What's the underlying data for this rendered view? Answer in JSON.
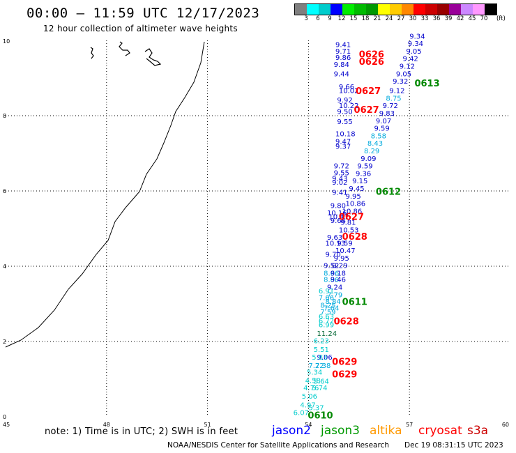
{
  "header": {
    "title": "00:00 – 11:59 UTC 12/17/2023",
    "subtitle": "12 hour collection of altimeter wave heights"
  },
  "legend": {
    "labels": [
      "3",
      "6",
      "9",
      "12",
      "15",
      "18",
      "21",
      "24",
      "27",
      "30",
      "33",
      "36",
      "39",
      "42",
      "45",
      "70"
    ],
    "unit": "(ft)",
    "colors": [
      "#7f7f7f",
      "#00ffff",
      "#00cccc",
      "#0000ff",
      "#00ee00",
      "#00bb00",
      "#009900",
      "#ffff00",
      "#ffcc00",
      "#ff8800",
      "#ff0000",
      "#cc0000",
      "#990000",
      "#990099",
      "#cc88ff",
      "#ff99ff",
      "#000000"
    ]
  },
  "axes": {
    "x_ticks": [
      "45",
      "48",
      "51",
      "54",
      "57",
      "60"
    ],
    "y_ticks": [
      "0",
      "2",
      "4",
      "6",
      "8",
      "10"
    ]
  },
  "passes": [
    {
      "label": "0626",
      "color": "#ff0000",
      "lon": 55.5,
      "lat": 9.55
    },
    {
      "label": "0626",
      "color": "#ff0000",
      "lon": 55.5,
      "lat": 9.35
    },
    {
      "label": "0613",
      "color": "#008800",
      "lon": 57.15,
      "lat": 8.78
    },
    {
      "label": "0627",
      "color": "#ff0000",
      "lon": 55.4,
      "lat": 8.57
    },
    {
      "label": "0627",
      "color": "#ff0000",
      "lon": 55.35,
      "lat": 8.07
    },
    {
      "label": "0612",
      "color": "#008800",
      "lon": 56.0,
      "lat": 5.9
    },
    {
      "label": "0627",
      "color": "#ff0000",
      "lon": 54.9,
      "lat": 5.23
    },
    {
      "label": "0628",
      "color": "#ff0000",
      "lon": 55.0,
      "lat": 4.7
    },
    {
      "label": "0611",
      "color": "#008800",
      "lon": 55.0,
      "lat": 2.97
    },
    {
      "label": "0628",
      "color": "#ff0000",
      "lon": 54.75,
      "lat": 2.45
    },
    {
      "label": "0629",
      "color": "#ff0000",
      "lon": 54.7,
      "lat": 1.38
    },
    {
      "label": "0629",
      "color": "#ff0000",
      "lon": 54.7,
      "lat": 1.05
    },
    {
      "label": "0610",
      "color": "#008800",
      "lon": 53.98,
      "lat": -0.05
    }
  ],
  "observations": [
    {
      "v": "9.34",
      "c": "#0000cc",
      "lon": 57.0,
      "lat": 10.05
    },
    {
      "v": "9.34",
      "c": "#0000cc",
      "lon": 56.95,
      "lat": 9.85
    },
    {
      "v": "9.41",
      "c": "#0000cc",
      "lon": 54.8,
      "lat": 9.82
    },
    {
      "v": "9.05",
      "c": "#0000cc",
      "lon": 56.9,
      "lat": 9.65
    },
    {
      "v": "9.71",
      "c": "#0000cc",
      "lon": 54.8,
      "lat": 9.65
    },
    {
      "v": "9.86",
      "c": "#0000cc",
      "lon": 54.8,
      "lat": 9.48
    },
    {
      "v": "9.42",
      "c": "#0000cc",
      "lon": 56.8,
      "lat": 9.45
    },
    {
      "v": "9.84",
      "c": "#0000cc",
      "lon": 54.75,
      "lat": 9.3
    },
    {
      "v": "9.12",
      "c": "#0000cc",
      "lon": 56.7,
      "lat": 9.25
    },
    {
      "v": "9.44",
      "c": "#0000cc",
      "lon": 54.75,
      "lat": 9.05
    },
    {
      "v": "9.05",
      "c": "#0000cc",
      "lon": 56.6,
      "lat": 9.05
    },
    {
      "v": "9.32",
      "c": "#0000cc",
      "lon": 56.5,
      "lat": 8.85
    },
    {
      "v": "9.66",
      "c": "#0000cc",
      "lon": 54.9,
      "lat": 8.7
    },
    {
      "v": "10.02",
      "c": "#0000cc",
      "lon": 54.9,
      "lat": 8.6
    },
    {
      "v": "9.12",
      "c": "#0000cc",
      "lon": 56.4,
      "lat": 8.6
    },
    {
      "v": "8.75",
      "c": "#00aadd",
      "lon": 56.3,
      "lat": 8.4
    },
    {
      "v": "9.92",
      "c": "#0000cc",
      "lon": 54.85,
      "lat": 8.35
    },
    {
      "v": "10.22",
      "c": "#0000cc",
      "lon": 54.9,
      "lat": 8.2
    },
    {
      "v": "9.72",
      "c": "#0000cc",
      "lon": 56.2,
      "lat": 8.2
    },
    {
      "v": "9.50",
      "c": "#0000cc",
      "lon": 54.85,
      "lat": 8.05
    },
    {
      "v": "9.83",
      "c": "#0000cc",
      "lon": 56.1,
      "lat": 8.0
    },
    {
      "v": "9.07",
      "c": "#0000cc",
      "lon": 56.0,
      "lat": 7.8
    },
    {
      "v": "9.55",
      "c": "#0000cc",
      "lon": 54.85,
      "lat": 7.78
    },
    {
      "v": "9.59",
      "c": "#0000cc",
      "lon": 55.95,
      "lat": 7.6
    },
    {
      "v": "10.18",
      "c": "#0000cc",
      "lon": 54.8,
      "lat": 7.45
    },
    {
      "v": "8.58",
      "c": "#00aadd",
      "lon": 55.85,
      "lat": 7.4
    },
    {
      "v": "9.47",
      "c": "#0000cc",
      "lon": 54.8,
      "lat": 7.25
    },
    {
      "v": "8.43",
      "c": "#00aadd",
      "lon": 55.75,
      "lat": 7.2
    },
    {
      "v": "9.37",
      "c": "#0000cc",
      "lon": 54.8,
      "lat": 7.12
    },
    {
      "v": "8.29",
      "c": "#00aadd",
      "lon": 55.65,
      "lat": 7.0
    },
    {
      "v": "9.09",
      "c": "#0000cc",
      "lon": 55.55,
      "lat": 6.8
    },
    {
      "v": "9.72",
      "c": "#0000cc",
      "lon": 54.75,
      "lat": 6.6
    },
    {
      "v": "9.59",
      "c": "#0000cc",
      "lon": 55.45,
      "lat": 6.6
    },
    {
      "v": "9.55",
      "c": "#0000cc",
      "lon": 54.75,
      "lat": 6.42
    },
    {
      "v": "9.36",
      "c": "#0000cc",
      "lon": 55.4,
      "lat": 6.4
    },
    {
      "v": "9.43",
      "c": "#0000cc",
      "lon": 54.7,
      "lat": 6.27
    },
    {
      "v": "9.02",
      "c": "#0000cc",
      "lon": 54.7,
      "lat": 6.17
    },
    {
      "v": "9.15",
      "c": "#0000cc",
      "lon": 55.3,
      "lat": 6.2
    },
    {
      "v": "9.45",
      "c": "#0000cc",
      "lon": 55.2,
      "lat": 6.0
    },
    {
      "v": "9.41",
      "c": "#0000cc",
      "lon": 54.7,
      "lat": 5.9
    },
    {
      "v": "9.95",
      "c": "#0000cc",
      "lon": 55.1,
      "lat": 5.8
    },
    {
      "v": "10.86",
      "c": "#0000cc",
      "lon": 55.1,
      "lat": 5.6
    },
    {
      "v": "9.80",
      "c": "#0000cc",
      "lon": 54.65,
      "lat": 5.55
    },
    {
      "v": "10.86",
      "c": "#0000cc",
      "lon": 55.0,
      "lat": 5.4
    },
    {
      "v": "10.16",
      "c": "#0000cc",
      "lon": 54.55,
      "lat": 5.35
    },
    {
      "v": "10.47",
      "c": "#0000cc",
      "lon": 54.6,
      "lat": 5.25
    },
    {
      "v": "9.64",
      "c": "#0000cc",
      "lon": 54.65,
      "lat": 5.15
    },
    {
      "v": "9.81",
      "c": "#0000cc",
      "lon": 54.95,
      "lat": 5.1
    },
    {
      "v": "10.53",
      "c": "#0000cc",
      "lon": 54.9,
      "lat": 4.9
    },
    {
      "v": "9.63",
      "c": "#0000cc",
      "lon": 54.55,
      "lat": 4.7
    },
    {
      "v": "10.13",
      "c": "#0000cc",
      "lon": 54.5,
      "lat": 4.55
    },
    {
      "v": "9.59",
      "c": "#0000cc",
      "lon": 54.85,
      "lat": 4.55
    },
    {
      "v": "10.47",
      "c": "#0000cc",
      "lon": 54.8,
      "lat": 4.35
    },
    {
      "v": "9.70",
      "c": "#0000cc",
      "lon": 54.5,
      "lat": 4.25
    },
    {
      "v": "9.95",
      "c": "#0000cc",
      "lon": 54.75,
      "lat": 4.15
    },
    {
      "v": "9.52",
      "c": "#0000cc",
      "lon": 54.45,
      "lat": 3.95
    },
    {
      "v": "9.29",
      "c": "#0000cc",
      "lon": 54.7,
      "lat": 3.95
    },
    {
      "v": "8.66",
      "c": "#00aadd",
      "lon": 54.45,
      "lat": 3.75
    },
    {
      "v": "9.18",
      "c": "#0000cc",
      "lon": 54.65,
      "lat": 3.75
    },
    {
      "v": "8.86",
      "c": "#00aadd",
      "lon": 54.45,
      "lat": 3.58
    },
    {
      "v": "9.46",
      "c": "#0000cc",
      "lon": 54.65,
      "lat": 3.58
    },
    {
      "v": "9.24",
      "c": "#0000cc",
      "lon": 54.55,
      "lat": 3.38
    },
    {
      "v": "6.91",
      "c": "#00cccc",
      "lon": 54.3,
      "lat": 3.28
    },
    {
      "v": "7.79",
      "c": "#00aadd",
      "lon": 54.55,
      "lat": 3.18
    },
    {
      "v": "7.66",
      "c": "#00aadd",
      "lon": 54.3,
      "lat": 3.1
    },
    {
      "v": "8.84",
      "c": "#00aadd",
      "lon": 54.5,
      "lat": 3.0
    },
    {
      "v": "8.25",
      "c": "#00aadd",
      "lon": 54.35,
      "lat": 2.9
    },
    {
      "v": "7.64",
      "c": "#00aadd",
      "lon": 54.45,
      "lat": 2.82
    },
    {
      "v": "7.59",
      "c": "#00aadd",
      "lon": 54.35,
      "lat": 2.72
    },
    {
      "v": "6.63",
      "c": "#00cccc",
      "lon": 54.3,
      "lat": 2.6
    },
    {
      "v": "6.72",
      "c": "#00cccc",
      "lon": 54.3,
      "lat": 2.48
    },
    {
      "v": "6.99",
      "c": "#00cccc",
      "lon": 54.3,
      "lat": 2.38
    },
    {
      "v": "11.24",
      "c": "#006633",
      "lon": 54.25,
      "lat": 2.15
    },
    {
      "v": "6.23",
      "c": "#00cccc",
      "lon": 54.15,
      "lat": 1.95
    },
    {
      "v": "5.51",
      "c": "#00cccc",
      "lon": 54.15,
      "lat": 1.72
    },
    {
      "v": "9.06",
      "c": "#0000cc",
      "lon": 54.25,
      "lat": 1.52
    },
    {
      "v": "5.83",
      "c": "#00cccc",
      "lon": 54.1,
      "lat": 1.52
    },
    {
      "v": "7.22",
      "c": "#00aadd",
      "lon": 54.0,
      "lat": 1.3
    },
    {
      "v": "7.38",
      "c": "#00aadd",
      "lon": 54.2,
      "lat": 1.3
    },
    {
      "v": "5.34",
      "c": "#00cccc",
      "lon": 53.95,
      "lat": 1.12
    },
    {
      "v": "4.58",
      "c": "#00cccc",
      "lon": 53.9,
      "lat": 0.9
    },
    {
      "v": "5.64",
      "c": "#00cccc",
      "lon": 54.15,
      "lat": 0.88
    },
    {
      "v": "4.76",
      "c": "#00cccc",
      "lon": 53.85,
      "lat": 0.7
    },
    {
      "v": "5.74",
      "c": "#00cccc",
      "lon": 54.1,
      "lat": 0.7
    },
    {
      "v": "5.06",
      "c": "#00cccc",
      "lon": 53.8,
      "lat": 0.48
    },
    {
      "v": "4.97",
      "c": "#00cccc",
      "lon": 53.75,
      "lat": 0.25
    },
    {
      "v": "5.37",
      "c": "#00cccc",
      "lon": 54.0,
      "lat": 0.18
    },
    {
      "v": "6.07",
      "c": "#00cccc",
      "lon": 53.55,
      "lat": 0.05
    }
  ],
  "footer": {
    "note": "note: 1) Time is in UTC; 2) SWH is in feet",
    "satellites": [
      {
        "name": "jason2",
        "color": "#0000ff"
      },
      {
        "name": "jason3",
        "color": "#009900"
      },
      {
        "name": "altika",
        "color": "#ff9900"
      },
      {
        "name": "cryosat",
        "color": "#ff0000"
      },
      {
        "name": "s3a",
        "color": "#cc0000"
      }
    ],
    "credit": "NOAA/NESDIS Center for Satellite Applications and Research",
    "timestamp": "Dec 19 08:31:15 UTC 2023"
  }
}
